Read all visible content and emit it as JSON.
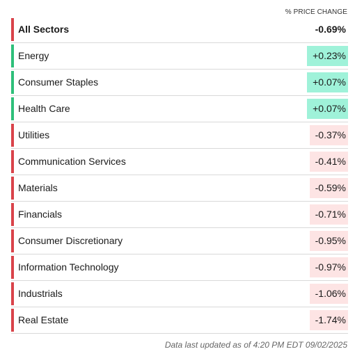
{
  "header": {
    "column_label": "% PRICE CHANGE"
  },
  "colors": {
    "negative_bar": "#d9434a",
    "positive_bar": "#2ebf7a",
    "negative_bg": "#fde4e4",
    "positive_bg": "#9ff2d9"
  },
  "sectors": [
    {
      "name": "All Sectors",
      "change": "-0.69%",
      "direction": "negative",
      "aggregate": true
    },
    {
      "name": "Energy",
      "change": "+0.23%",
      "direction": "positive"
    },
    {
      "name": "Consumer Staples",
      "change": "+0.07%",
      "direction": "positive"
    },
    {
      "name": "Health Care",
      "change": "+0.07%",
      "direction": "positive"
    },
    {
      "name": "Utilities",
      "change": "-0.37%",
      "direction": "negative"
    },
    {
      "name": "Communication Services",
      "change": "-0.41%",
      "direction": "negative"
    },
    {
      "name": "Materials",
      "change": "-0.59%",
      "direction": "negative"
    },
    {
      "name": "Financials",
      "change": "-0.71%",
      "direction": "negative"
    },
    {
      "name": "Consumer Discretionary",
      "change": "-0.95%",
      "direction": "negative"
    },
    {
      "name": "Information Technology",
      "change": "-0.97%",
      "direction": "negative"
    },
    {
      "name": "Industrials",
      "change": "-1.06%",
      "direction": "negative"
    },
    {
      "name": "Real Estate",
      "change": "-1.74%",
      "direction": "negative"
    }
  ],
  "footer": {
    "updated_text": "Data last updated as of 4:20 PM EDT 09/02/2025"
  }
}
